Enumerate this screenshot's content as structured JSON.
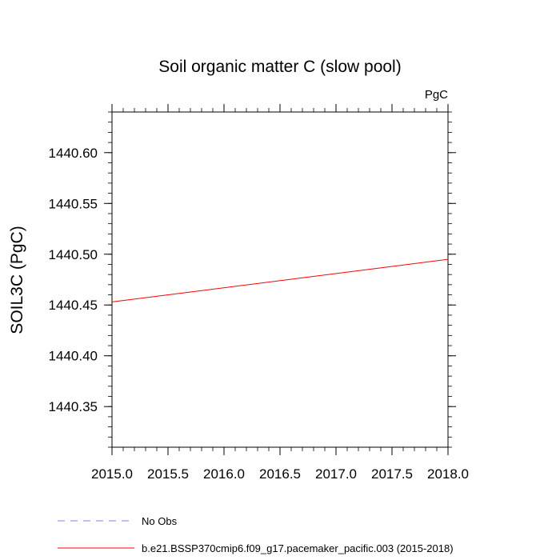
{
  "chart_data": {
    "type": "line",
    "title": "Soil organic matter C (slow pool)",
    "units": "PgC",
    "xlabel": "",
    "ylabel": "SOIL3C  (PgC)",
    "xlim": [
      2015.0,
      2018.0
    ],
    "ylim": [
      1440.31,
      1440.64
    ],
    "x_ticks": [
      "2015.0",
      "2015.5",
      "2016.0",
      "2016.5",
      "2017.0",
      "2017.5",
      "2018.0"
    ],
    "y_ticks": [
      "1440.35",
      "1440.40",
      "1440.45",
      "1440.50",
      "1440.55",
      "1440.60"
    ],
    "grid": false,
    "legend_position": "bottom",
    "series": [
      {
        "name": "No Obs",
        "color": "#7f7fff",
        "style": "dashed",
        "x": [],
        "y": []
      },
      {
        "name": "b.e21.BSSP370cmip6.f09_g17.pacemaker_pacific.003 (2015-2018)",
        "color": "#ff0000",
        "style": "solid",
        "x": [
          2015.0,
          2018.0
        ],
        "y": [
          1440.453,
          1440.495
        ]
      }
    ]
  }
}
